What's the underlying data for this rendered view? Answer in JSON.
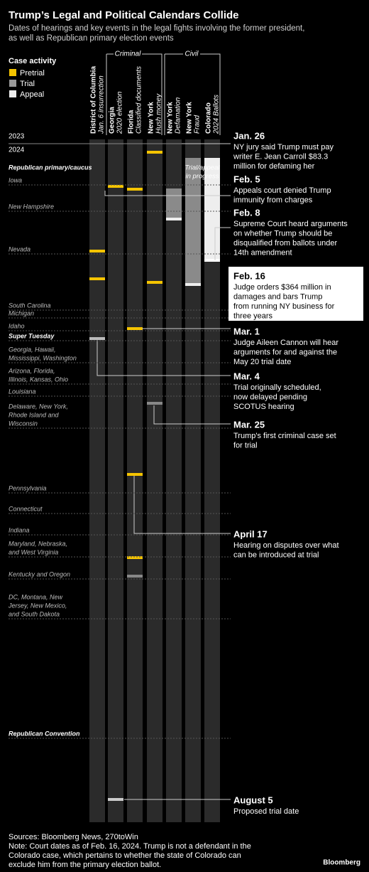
{
  "header": {
    "title": "Trump’s Legal and Political Calendars Collide",
    "subtitle": [
      "Dates of hearings and key events in the legal fights involving the former president,",
      "as well as Republican primary election events"
    ]
  },
  "legend": {
    "title": "Case activity",
    "items": [
      "Pretrial",
      "Trial",
      "Appeal"
    ]
  },
  "groups": [
    "Criminal",
    "Civil"
  ],
  "columns": [
    {
      "name": "District of Columbia",
      "detail": "Jan. 6 insurrection"
    },
    {
      "name": "Georgia",
      "detail": "2020 election"
    },
    {
      "name": "Florida",
      "detail": "Classified documents"
    },
    {
      "name": "New York",
      "detail": "Hush money"
    },
    {
      "name": "New York",
      "detail": "Defamation"
    },
    {
      "name": "New York",
      "detail": "Fraud"
    },
    {
      "name": "Colorado",
      "detail": "2024 Ballots"
    }
  ],
  "years": [
    "2023",
    "2024"
  ],
  "in_progress": [
    "Trial/appeal",
    "in progress"
  ],
  "primaries": [
    {
      "lines": [
        "Republican primary/caucus"
      ],
      "bold": true
    },
    {
      "lines": [
        "Iowa"
      ]
    },
    {
      "lines": [
        "New Hampshire"
      ]
    },
    {
      "lines": [
        "Nevada"
      ]
    },
    {
      "lines": [
        "South Carolina"
      ]
    },
    {
      "lines": [
        "Michigan"
      ]
    },
    {
      "lines": [
        "Idaho"
      ]
    },
    {
      "lines": [
        "Super Tuesday"
      ],
      "bold": true
    },
    {
      "lines": [
        "Georgia, Hawaii,",
        "Mississippi, Washington"
      ]
    },
    {
      "lines": [
        "Arizona, Florida,",
        "Illinois, Kansas, Ohio"
      ]
    },
    {
      "lines": [
        "Louisiana"
      ]
    },
    {
      "lines": [
        "Delaware, New York,",
        "Rhode Island and",
        "Wisconsin"
      ]
    },
    {
      "lines": [
        "Pennsylvania"
      ]
    },
    {
      "lines": [
        "Connecticut"
      ]
    },
    {
      "lines": [
        "Indiana"
      ]
    },
    {
      "lines": [
        "Maryland, Nebraska,",
        "and West Virginia"
      ]
    },
    {
      "lines": [
        "Kentucky and Oregon"
      ]
    },
    {
      "lines": [
        "DC, Montana, New",
        "Jersey, New Mexico,",
        "and South Dakota"
      ]
    },
    {
      "lines": [
        "Republican Convention"
      ],
      "bold": true
    }
  ],
  "events": [
    {
      "date": "Jan. 26",
      "lines": [
        "NY jury said Trump must pay",
        "writer E. Jean Carroll $83.3",
        "million for defaming her"
      ]
    },
    {
      "date": "Feb. 5",
      "lines": [
        "Appeals court denied Trump",
        "immunity from charges"
      ]
    },
    {
      "date": "Feb. 8",
      "lines": [
        "Supreme Court heard arguments",
        "on whether Trump should be",
        "disqualified from ballots under",
        "14th amendment"
      ]
    },
    {
      "date": "Feb. 16",
      "lines": [
        "Judge orders $364 million in",
        "damages and bars Trump",
        "from running NY business for",
        "three years"
      ],
      "highlight": true
    },
    {
      "date": "Mar. 1",
      "lines": [
        "Judge Aileen Cannon will hear",
        "arguments for and against the",
        "May 20 trial date"
      ]
    },
    {
      "date": "Mar. 4",
      "lines": [
        "Trial originally scheduled,",
        "now delayed pending",
        "SCOTUS hearing"
      ]
    },
    {
      "date": "Mar. 25",
      "lines": [
        "Trump's first criminal case set",
        "for trial"
      ]
    },
    {
      "date": "April 17",
      "lines": [
        "Hearing on disputes over what",
        "can be introduced at trial"
      ]
    },
    {
      "date": "August 5",
      "lines": [
        "Proposed trial date"
      ]
    }
  ],
  "footer": {
    "sources": "Sources: Bloomberg News, 270toWin",
    "note": [
      "Note: Court dates as of Feb. 16, 2024. Trump is not a defendant in the",
      "Colorado case, which pertains to whether the state of Colorado can",
      "exclude him from the primary election ballot."
    ],
    "logo": "Bloomberg"
  }
}
